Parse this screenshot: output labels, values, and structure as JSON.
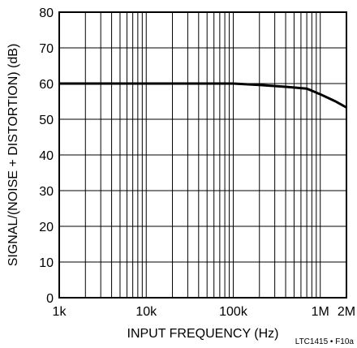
{
  "chart_data": {
    "type": "line",
    "title": "",
    "xlabel": "INPUT FREQUENCY (Hz)",
    "ylabel": "SIGNAL/(NOISE + DISTORTION) (dB)",
    "xscale": "log",
    "xlim": [
      1000,
      2000000
    ],
    "ylim": [
      0,
      80
    ],
    "x_ticks": [
      1000,
      10000,
      100000,
      1000000,
      2000000
    ],
    "x_tick_labels": [
      "1k",
      "10k",
      "100k",
      "1M",
      "2M"
    ],
    "y_ticks": [
      0,
      10,
      20,
      30,
      40,
      50,
      60,
      70,
      80
    ],
    "y_tick_labels": [
      "0",
      "10",
      "20",
      "30",
      "40",
      "50",
      "60",
      "70",
      "80"
    ],
    "grid": true,
    "legend": "none",
    "series": [
      {
        "x": [
          1000,
          100000,
          200000,
          400000,
          700000,
          1000000,
          1500000,
          2000000
        ],
        "y": [
          60,
          60,
          59.6,
          59.1,
          58.6,
          57,
          55,
          53.3
        ]
      }
    ],
    "figure_ref": "LTC1415 • F10a"
  }
}
